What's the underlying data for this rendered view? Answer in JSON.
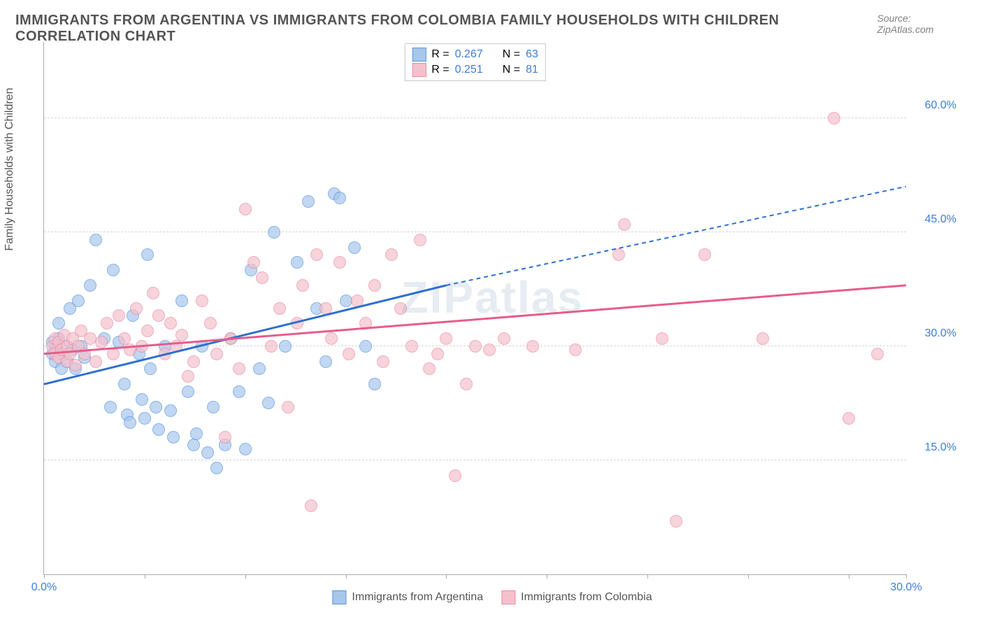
{
  "header": {
    "title": "IMMIGRANTS FROM ARGENTINA VS IMMIGRANTS FROM COLOMBIA FAMILY HOUSEHOLDS WITH CHILDREN CORRELATION CHART",
    "source_prefix": "Source: ",
    "source_name": "ZipAtlas.com"
  },
  "chart": {
    "type": "scatter",
    "ylabel": "Family Households with Children",
    "xlim": [
      0,
      30
    ],
    "ylim": [
      0,
      70
    ],
    "xtick_positions": [
      0,
      3.5,
      7,
      10.5,
      14,
      17.5,
      21,
      24.5,
      28,
      30
    ],
    "xtick_labels": {
      "0": "0.0%",
      "30": "30.0%"
    },
    "ytick_positions": [
      15,
      30,
      45,
      60
    ],
    "ytick_labels": {
      "15": "15.0%",
      "30": "30.0%",
      "45": "45.0%",
      "60": "60.0%"
    },
    "background_color": "#ffffff",
    "grid_color": "#d5d5d5",
    "axis_color": "#aaaaaa",
    "text_color": "#555555",
    "value_color": "#3b7dd8",
    "watermark": "ZIPatlas",
    "series": [
      {
        "name": "Immigrants from Argentina",
        "fill_color": "#a7c7ed",
        "border_color": "#5a94d6",
        "line_color": "#2d6fd0",
        "r_label": "R =",
        "r_value": "0.267",
        "n_label": "N =",
        "n_value": "63",
        "trend": {
          "x1": 0,
          "y1": 25,
          "x2": 14,
          "y2": 38,
          "x2_dash": 30,
          "y2_dash": 51
        },
        "points": [
          [
            0.3,
            29
          ],
          [
            0.4,
            30
          ],
          [
            0.4,
            28
          ],
          [
            0.5,
            31
          ],
          [
            0.6,
            29
          ],
          [
            0.6,
            27
          ],
          [
            0.5,
            33
          ],
          [
            0.3,
            30.5
          ],
          [
            0.8,
            30
          ],
          [
            0.8,
            28
          ],
          [
            0.9,
            35
          ],
          [
            1.0,
            29.5
          ],
          [
            1.1,
            27
          ],
          [
            1.2,
            36
          ],
          [
            1.3,
            30
          ],
          [
            1.4,
            28.5
          ],
          [
            1.6,
            38
          ],
          [
            1.8,
            44
          ],
          [
            2.1,
            31
          ],
          [
            2.3,
            22
          ],
          [
            2.4,
            40
          ],
          [
            2.6,
            30.5
          ],
          [
            2.8,
            25
          ],
          [
            2.9,
            21
          ],
          [
            3.0,
            20
          ],
          [
            3.1,
            34
          ],
          [
            3.3,
            29
          ],
          [
            3.4,
            23
          ],
          [
            3.5,
            20.5
          ],
          [
            3.6,
            42
          ],
          [
            3.7,
            27
          ],
          [
            3.9,
            22
          ],
          [
            4.0,
            19
          ],
          [
            4.2,
            30
          ],
          [
            4.4,
            21.5
          ],
          [
            4.5,
            18
          ],
          [
            4.8,
            36
          ],
          [
            5.0,
            24
          ],
          [
            5.2,
            17
          ],
          [
            5.3,
            18.5
          ],
          [
            5.5,
            30
          ],
          [
            5.7,
            16
          ],
          [
            5.9,
            22
          ],
          [
            6.0,
            14
          ],
          [
            6.3,
            17
          ],
          [
            6.5,
            31
          ],
          [
            6.8,
            24
          ],
          [
            7.0,
            16.5
          ],
          [
            7.2,
            40
          ],
          [
            7.5,
            27
          ],
          [
            7.8,
            22.5
          ],
          [
            8.0,
            45
          ],
          [
            8.4,
            30
          ],
          [
            8.8,
            41
          ],
          [
            9.2,
            49
          ],
          [
            9.5,
            35
          ],
          [
            9.8,
            28
          ],
          [
            10.1,
            50
          ],
          [
            10.3,
            49.5
          ],
          [
            10.5,
            36
          ],
          [
            10.8,
            43
          ],
          [
            11.2,
            30
          ],
          [
            11.5,
            25
          ]
        ]
      },
      {
        "name": "Immigrants from Colombia",
        "fill_color": "#f5c1cd",
        "border_color": "#e98ba2",
        "line_color": "#e75c8a",
        "r_label": "R =",
        "r_value": "0.251",
        "n_label": "N =",
        "n_value": "81",
        "trend": {
          "x1": 0,
          "y1": 29,
          "x2": 30,
          "y2": 38,
          "x2_dash": 30,
          "y2_dash": 38
        },
        "points": [
          [
            0.3,
            30
          ],
          [
            0.4,
            29
          ],
          [
            0.4,
            31
          ],
          [
            0.5,
            28.5
          ],
          [
            0.5,
            30.5
          ],
          [
            0.6,
            29.5
          ],
          [
            0.7,
            31.5
          ],
          [
            0.8,
            28
          ],
          [
            0.8,
            30
          ],
          [
            0.9,
            29
          ],
          [
            1.0,
            31
          ],
          [
            1.1,
            27.5
          ],
          [
            1.2,
            30
          ],
          [
            1.3,
            32
          ],
          [
            1.4,
            29
          ],
          [
            1.6,
            31
          ],
          [
            1.8,
            28
          ],
          [
            2.0,
            30.5
          ],
          [
            2.2,
            33
          ],
          [
            2.4,
            29
          ],
          [
            2.6,
            34
          ],
          [
            2.8,
            31
          ],
          [
            3.0,
            29.5
          ],
          [
            3.2,
            35
          ],
          [
            3.4,
            30
          ],
          [
            3.6,
            32
          ],
          [
            3.8,
            37
          ],
          [
            4.0,
            34
          ],
          [
            4.2,
            29
          ],
          [
            4.4,
            33
          ],
          [
            4.6,
            30
          ],
          [
            4.8,
            31.5
          ],
          [
            5.0,
            26
          ],
          [
            5.2,
            28
          ],
          [
            5.5,
            36
          ],
          [
            5.8,
            33
          ],
          [
            6.0,
            29
          ],
          [
            6.3,
            18
          ],
          [
            6.5,
            31
          ],
          [
            6.8,
            27
          ],
          [
            7.0,
            48
          ],
          [
            7.3,
            41
          ],
          [
            7.6,
            39
          ],
          [
            7.9,
            30
          ],
          [
            8.2,
            35
          ],
          [
            8.5,
            22
          ],
          [
            8.8,
            33
          ],
          [
            9.0,
            38
          ],
          [
            9.3,
            9
          ],
          [
            9.5,
            42
          ],
          [
            9.8,
            35
          ],
          [
            10.0,
            31
          ],
          [
            10.3,
            41
          ],
          [
            10.6,
            29
          ],
          [
            10.9,
            36
          ],
          [
            11.2,
            33
          ],
          [
            11.5,
            38
          ],
          [
            11.8,
            28
          ],
          [
            12.1,
            42
          ],
          [
            12.4,
            35
          ],
          [
            12.8,
            30
          ],
          [
            13.1,
            44
          ],
          [
            13.4,
            27
          ],
          [
            13.7,
            29
          ],
          [
            14.0,
            31
          ],
          [
            14.3,
            13
          ],
          [
            14.7,
            25
          ],
          [
            15.0,
            30
          ],
          [
            15.5,
            29.5
          ],
          [
            16.0,
            31
          ],
          [
            17.0,
            30
          ],
          [
            18.5,
            29.5
          ],
          [
            20.0,
            42
          ],
          [
            20.2,
            46
          ],
          [
            21.5,
            31
          ],
          [
            22.0,
            7
          ],
          [
            23.0,
            42
          ],
          [
            25.0,
            31
          ],
          [
            27.5,
            60
          ],
          [
            28.0,
            20.5
          ],
          [
            29.0,
            29
          ]
        ]
      }
    ]
  },
  "legend_bottom": [
    {
      "label": "Immigrants from Argentina",
      "fill": "#a7c7ed",
      "border": "#5a94d6"
    },
    {
      "label": "Immigrants from Colombia",
      "fill": "#f5c1cd",
      "border": "#e98ba2"
    }
  ]
}
